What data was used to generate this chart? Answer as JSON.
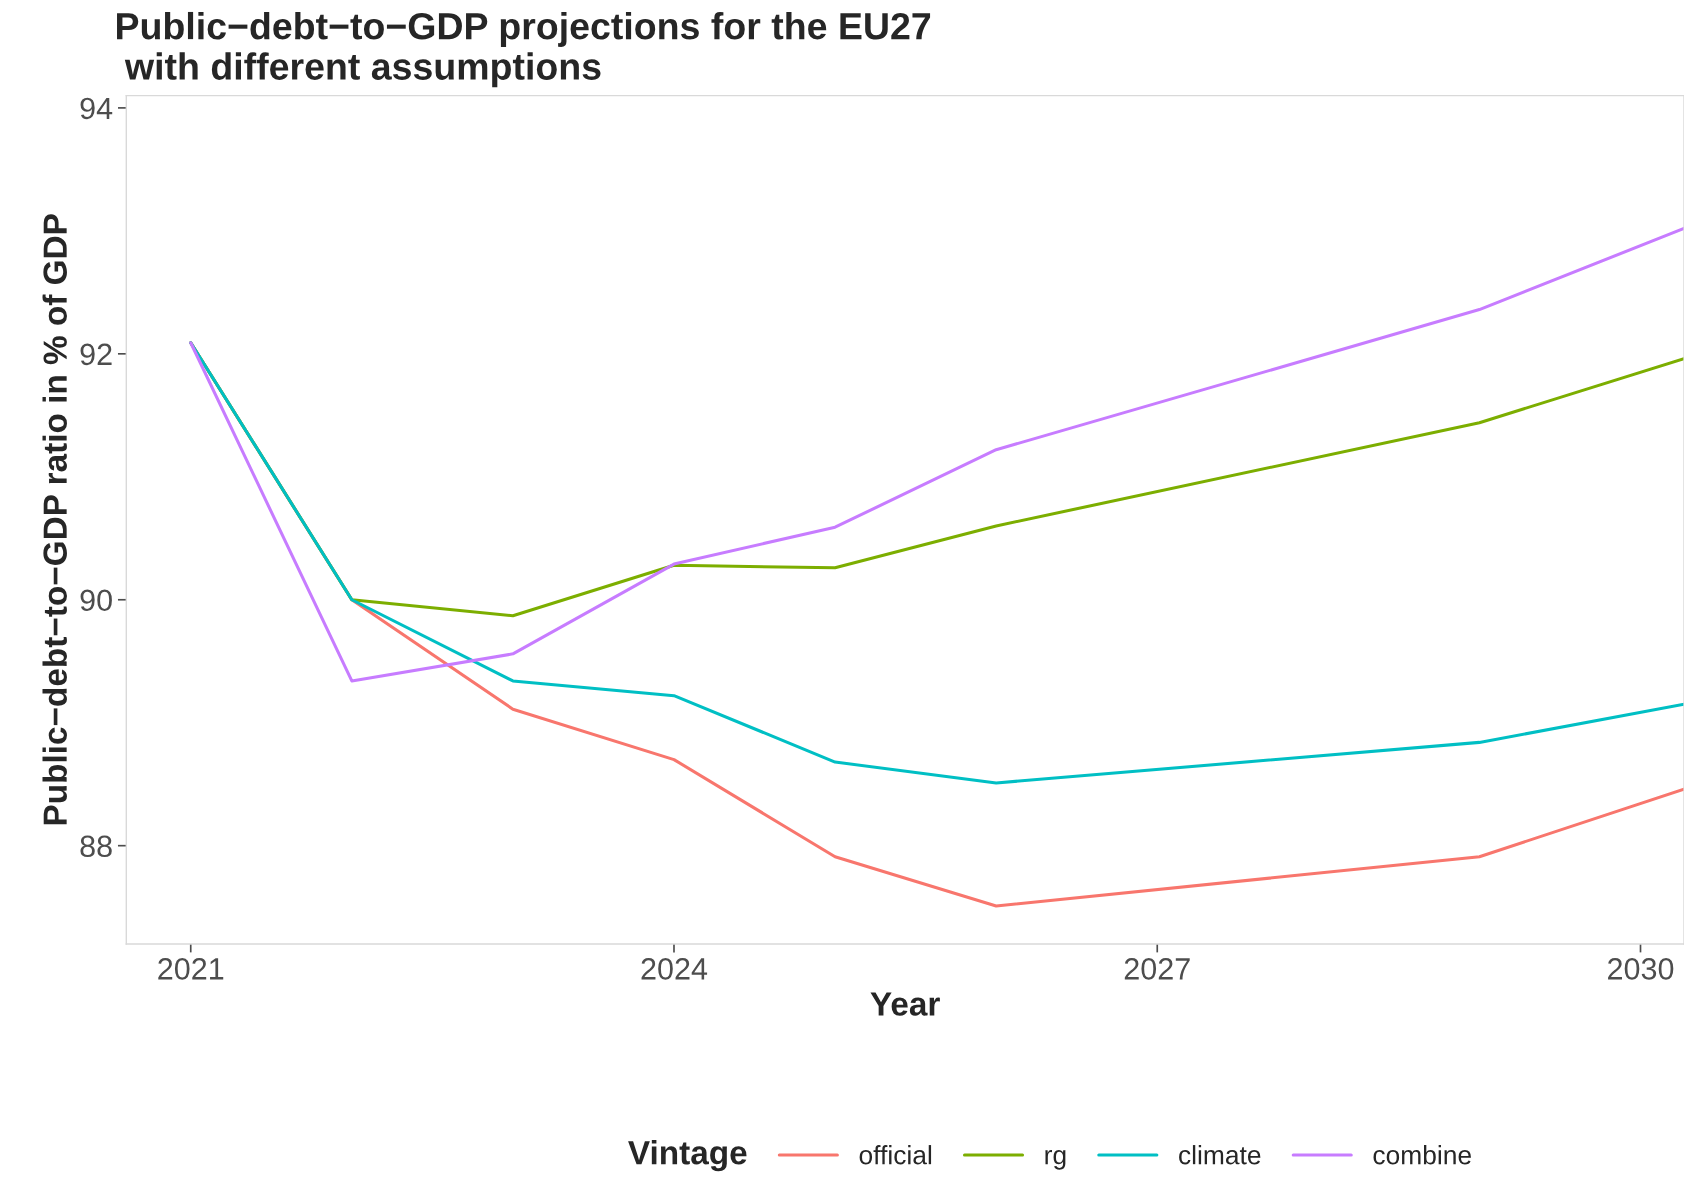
{
  "chart_data": {
    "type": "line",
    "title": "Public−debt−to−GDP projections for the EU27\n with different assumptions",
    "xlabel": "Year",
    "ylabel": "Public−debt−to−GDP ratio in % of GDP",
    "legend_title": "Vintage",
    "x": [
      2021,
      2022,
      2023,
      2024,
      2025,
      2026,
      2029,
      2030.27
    ],
    "series": [
      {
        "name": "official",
        "color": "#f8766d",
        "values": [
          92.09,
          90.0,
          89.11,
          88.7,
          87.91,
          87.51,
          87.91,
          88.46
        ]
      },
      {
        "name": "rg",
        "color": "#7cae00",
        "values": [
          92.09,
          90.0,
          89.87,
          90.28,
          90.26,
          90.6,
          91.44,
          91.96
        ]
      },
      {
        "name": "climate",
        "color": "#00bfc4",
        "values": [
          92.09,
          90.0,
          89.34,
          89.22,
          88.68,
          88.51,
          88.84,
          89.15
        ]
      },
      {
        "name": "combine",
        "color": "#c77cff",
        "values": [
          92.09,
          89.34,
          89.56,
          90.29,
          90.59,
          91.22,
          92.36,
          93.02
        ]
      }
    ],
    "xlim": [
      2020.6,
      2030.27
    ],
    "ylim": [
      87.2,
      94.1
    ],
    "xticks": [
      2021,
      2024,
      2027,
      2030
    ],
    "yticks": [
      88,
      90,
      92,
      94
    ],
    "grid": false,
    "legend": "bottom",
    "line_style": "solid",
    "marker": "none"
  }
}
